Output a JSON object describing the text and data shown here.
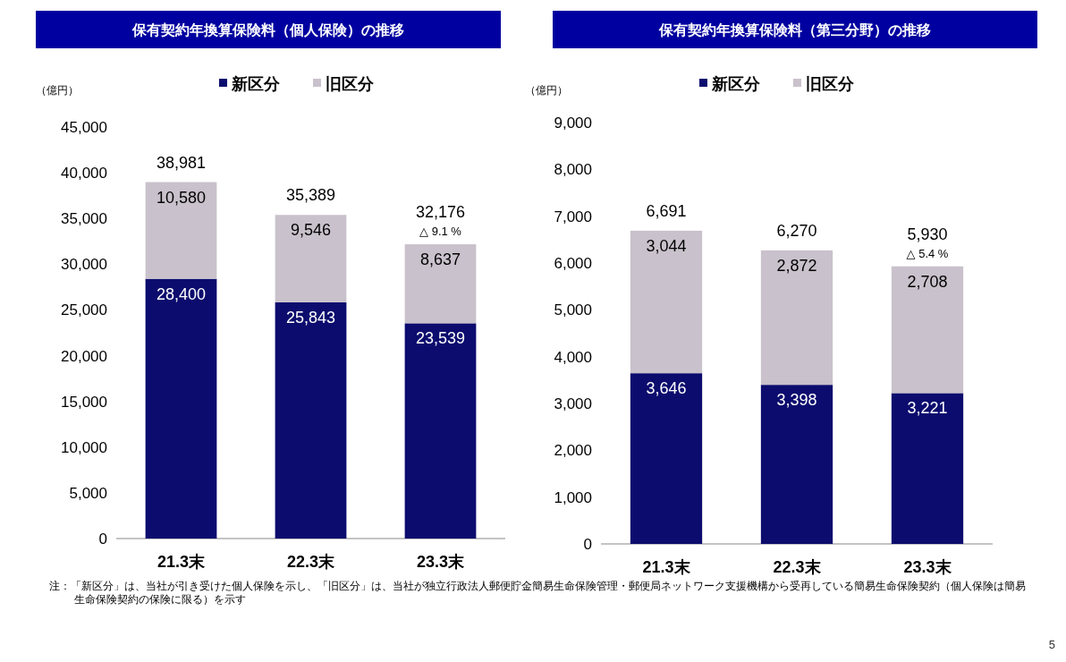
{
  "chart_data": [
    {
      "type": "bar",
      "title": "保有契約年換算保険料（個人保険）の推移",
      "ylabel": "（億円）",
      "stacked": true,
      "legend": "top",
      "categories": [
        "21.3末",
        "22.3末",
        "23.3末"
      ],
      "series": [
        {
          "name": "新区分",
          "color": "#0c0c6e",
          "values": [
            28400,
            25843,
            23539
          ],
          "value_labels": [
            "28,400",
            "25,843",
            "23,539"
          ]
        },
        {
          "name": "旧区分",
          "color": "#c9c1cb",
          "values": [
            10580,
            9546,
            8637
          ],
          "value_labels": [
            "10,580",
            "9,546",
            "8,637"
          ]
        }
      ],
      "totals": [
        "38,981",
        "35,389",
        "32,176"
      ],
      "ylim": [
        0,
        45000
      ],
      "yticks": [
        {
          "value": 0,
          "label": "0"
        },
        {
          "value": 5000,
          "label": "5,000"
        },
        {
          "value": 10000,
          "label": "10,000"
        },
        {
          "value": 15000,
          "label": "15,000"
        },
        {
          "value": 20000,
          "label": "20,000"
        },
        {
          "value": 25000,
          "label": "25,000"
        },
        {
          "value": 30000,
          "label": "30,000"
        },
        {
          "value": 35000,
          "label": "35,000"
        },
        {
          "value": 40000,
          "label": "40,000"
        },
        {
          "value": 45000,
          "label": "45,000"
        }
      ],
      "annotations": [
        {
          "text": "△ 9.1 %",
          "x": "23.3末",
          "y": 32176
        },
        "注：「新区分」は、当社が引き受けた個人保険を示し、「旧区分」は、当社が独立行政法人郵便貯金簡易生命保険管理・郵便局ネットワーク支援機構から受再している簡易生命保険契約（個人保険は簡易生命保険契約の保険に限る）を示す"
      ]
    },
    {
      "type": "bar",
      "title": "保有契約年換算保険料（第三分野）の推移",
      "ylabel": "（億円）",
      "stacked": true,
      "legend": "top",
      "categories": [
        "21.3末",
        "22.3末",
        "23.3末"
      ],
      "series": [
        {
          "name": "新区分",
          "color": "#0c0c6e",
          "values": [
            3646,
            3398,
            3221
          ],
          "value_labels": [
            "3,646",
            "3,398",
            "3,221"
          ]
        },
        {
          "name": "旧区分",
          "color": "#c9c1cb",
          "values": [
            3044,
            2872,
            2708
          ],
          "value_labels": [
            "3,044",
            "2,872",
            "2,708"
          ]
        }
      ],
      "totals": [
        "6,691",
        "6,270",
        "5,930"
      ],
      "ylim": [
        0,
        9000
      ],
      "yticks": [
        {
          "value": 0,
          "label": "0"
        },
        {
          "value": 1000,
          "label": "1,000"
        },
        {
          "value": 2000,
          "label": "2,000"
        },
        {
          "value": 3000,
          "label": "3,000"
        },
        {
          "value": 4000,
          "label": "4,000"
        },
        {
          "value": 5000,
          "label": "5,000"
        },
        {
          "value": 6000,
          "label": "6,000"
        },
        {
          "value": 7000,
          "label": "7,000"
        },
        {
          "value": 8000,
          "label": "8,000"
        },
        {
          "value": 9000,
          "label": "9,000"
        }
      ],
      "annotations": [
        {
          "text": "△ 5.4 %",
          "x": "23.3末",
          "y": 5930
        },
        "5"
      ]
    }
  ]
}
